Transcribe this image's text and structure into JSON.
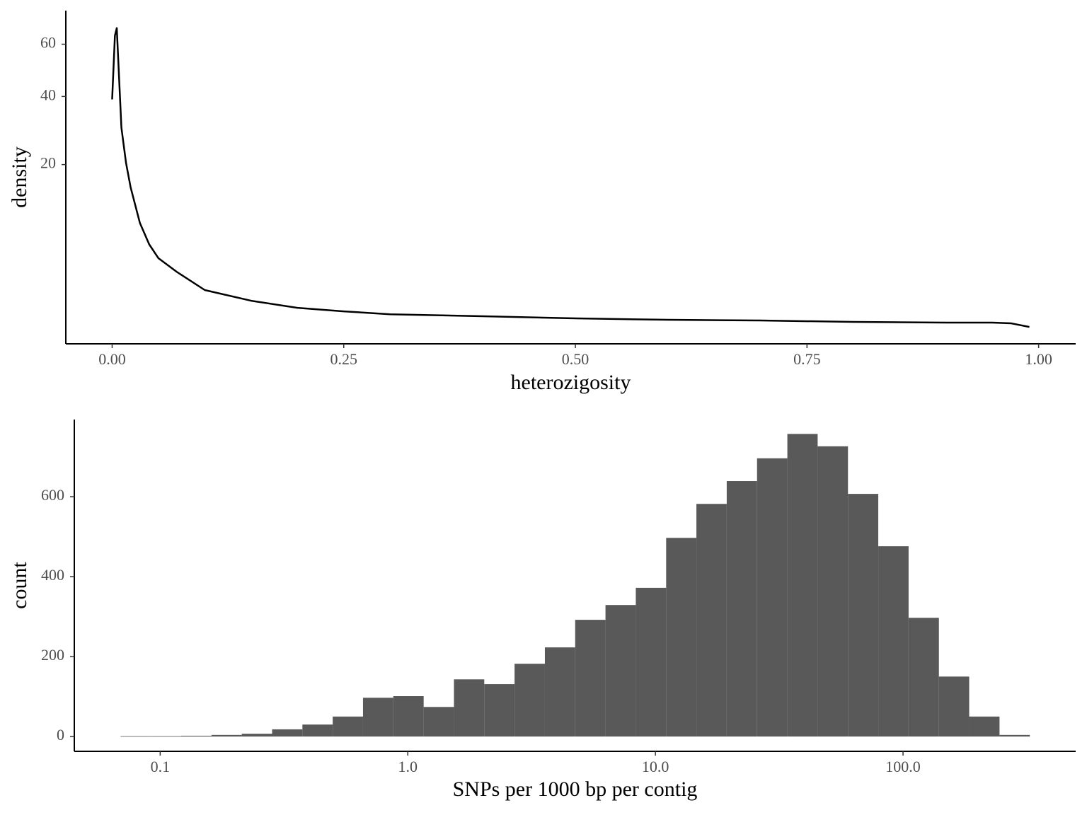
{
  "chart_data": [
    {
      "type": "line",
      "x_label": "heterozigosity",
      "y_label": "density",
      "color": "#000000",
      "y_scale": "sqrt",
      "x": [
        0.0,
        0.003,
        0.005,
        0.01,
        0.015,
        0.02,
        0.03,
        0.04,
        0.05,
        0.07,
        0.1,
        0.15,
        0.2,
        0.25,
        0.3,
        0.4,
        0.5,
        0.6,
        0.7,
        0.8,
        0.9,
        0.95,
        0.97,
        0.99
      ],
      "values": [
        39,
        63.7,
        67,
        30,
        20.4,
        14.8,
        8.3,
        5.3,
        3.7,
        2.4,
        1.12,
        0.59,
        0.33,
        0.23,
        0.16,
        0.12,
        0.083,
        0.062,
        0.053,
        0.037,
        0.03,
        0.03,
        0.024,
        0.003
      ],
      "xlim": [
        -0.05,
        1.04
      ],
      "ylim": [
        0,
        75
      ],
      "xticks": [
        {
          "value": 0,
          "label": "0.00"
        },
        {
          "value": 0.25,
          "label": "0.25"
        },
        {
          "value": 0.5,
          "label": "0.50"
        },
        {
          "value": 0.75,
          "label": "0.75"
        },
        {
          "value": 1,
          "label": "1.00"
        }
      ],
      "yticks": [
        20,
        40,
        60
      ]
    },
    {
      "type": "histogram",
      "x_label": "SNPs per 1000 bp per contig",
      "y_label": "count",
      "color": "#595959",
      "x_scale": "log",
      "bins": [
        0.0692,
        0.0917,
        0.1216,
        0.1612,
        0.2136,
        0.2831,
        0.3753,
        0.4974,
        0.6594,
        0.874,
        1.159,
        1.536,
        2.036,
        2.699,
        3.578,
        4.742,
        6.286,
        8.333,
        11.05,
        14.64,
        19.41,
        25.73,
        34.11,
        45.21,
        59.93,
        79.43,
        105.3,
        139.6,
        185.0,
        245.3,
        325.1
      ],
      "counts": [
        1,
        1,
        2,
        4,
        7,
        18,
        30,
        50,
        97,
        101,
        74,
        143,
        131,
        182,
        223,
        292,
        329,
        372,
        497,
        582,
        639,
        696,
        757,
        726,
        607,
        476,
        297,
        150,
        50,
        4
      ],
      "xlim": [
        0.045,
        498
      ],
      "ylim": [
        -37,
        793
      ],
      "xticks": [
        0.1,
        {
          "value": 1,
          "label": "1.0"
        },
        {
          "value": 10,
          "label": "10.0"
        },
        {
          "value": 100,
          "label": "100.0"
        }
      ],
      "yticks": [
        0,
        200,
        400,
        600
      ]
    }
  ]
}
